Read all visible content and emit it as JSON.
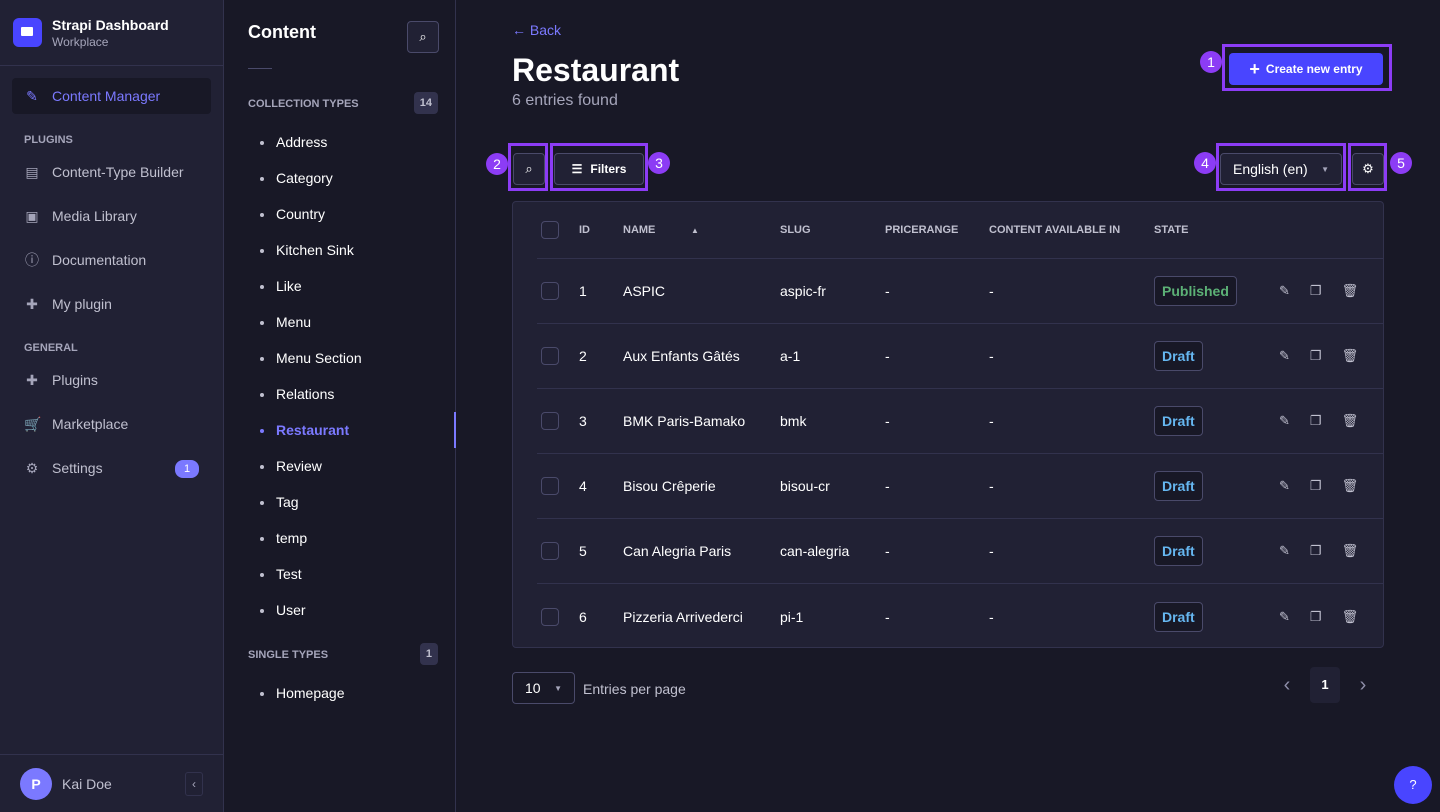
{
  "nav": {
    "brand": "Strapi Dashboard",
    "workspace": "Workplace",
    "content_manager": "Content Manager",
    "plugins_label": "PLUGINS",
    "plugins": [
      {
        "label": "Content-Type Builder",
        "icon": "layout-icon"
      },
      {
        "label": "Media Library",
        "icon": "image-icon"
      },
      {
        "label": "Documentation",
        "icon": "info-icon"
      },
      {
        "label": "My plugin",
        "icon": "puzzle-icon"
      }
    ],
    "general_label": "GENERAL",
    "general": [
      {
        "label": "Plugins",
        "icon": "puzzle-icon"
      },
      {
        "label": "Marketplace",
        "icon": "cart-icon"
      },
      {
        "label": "Settings",
        "icon": "gear-icon",
        "badge": "1"
      }
    ],
    "user": {
      "initial": "P",
      "name": "Kai Doe"
    }
  },
  "subnav": {
    "title": "Content",
    "collection_label": "COLLECTION TYPES",
    "collection_count": "14",
    "collection": [
      "Address",
      "Category",
      "Country",
      "Kitchen Sink",
      "Like",
      "Menu",
      "Menu Section",
      "Relations",
      "Restaurant",
      "Review",
      "Tag",
      "temp",
      "Test",
      "User"
    ],
    "active": "Restaurant",
    "single_label": "SINGLE TYPES",
    "single_count": "1",
    "single": [
      "Homepage"
    ]
  },
  "main": {
    "back": "Back",
    "title": "Restaurant",
    "subtitle": "6 entries found",
    "create": "Create new entry",
    "filters": "Filters",
    "locale": "English (en)",
    "annotations": [
      "1",
      "2",
      "3",
      "4",
      "5"
    ],
    "annotation_color": "#8c3cf5",
    "columns": [
      "ID",
      "NAME",
      "SLUG",
      "PRICERANGE",
      "CONTENT AVAILABLE IN",
      "STATE"
    ],
    "rows": [
      {
        "id": "1",
        "name": "ASPIC",
        "slug": "aspic-fr",
        "price": "-",
        "avail": "-",
        "state": "Published"
      },
      {
        "id": "2",
        "name": "Aux Enfants Gâtés",
        "slug": "a-1",
        "price": "-",
        "avail": "-",
        "state": "Draft"
      },
      {
        "id": "3",
        "name": "BMK Paris-Bamako",
        "slug": "bmk",
        "price": "-",
        "avail": "-",
        "state": "Draft"
      },
      {
        "id": "4",
        "name": "Bisou Crêperie",
        "slug": "bisou-cr",
        "price": "-",
        "avail": "-",
        "state": "Draft"
      },
      {
        "id": "5",
        "name": "Can Alegria Paris",
        "slug": "can-alegria",
        "price": "-",
        "avail": "-",
        "state": "Draft"
      },
      {
        "id": "6",
        "name": "Pizzeria Arrivederci",
        "slug": "pi-1",
        "price": "-",
        "avail": "-",
        "state": "Draft"
      }
    ],
    "page_size": "10",
    "entries_per_page": "Entries per page",
    "page": "1",
    "help": "?"
  }
}
